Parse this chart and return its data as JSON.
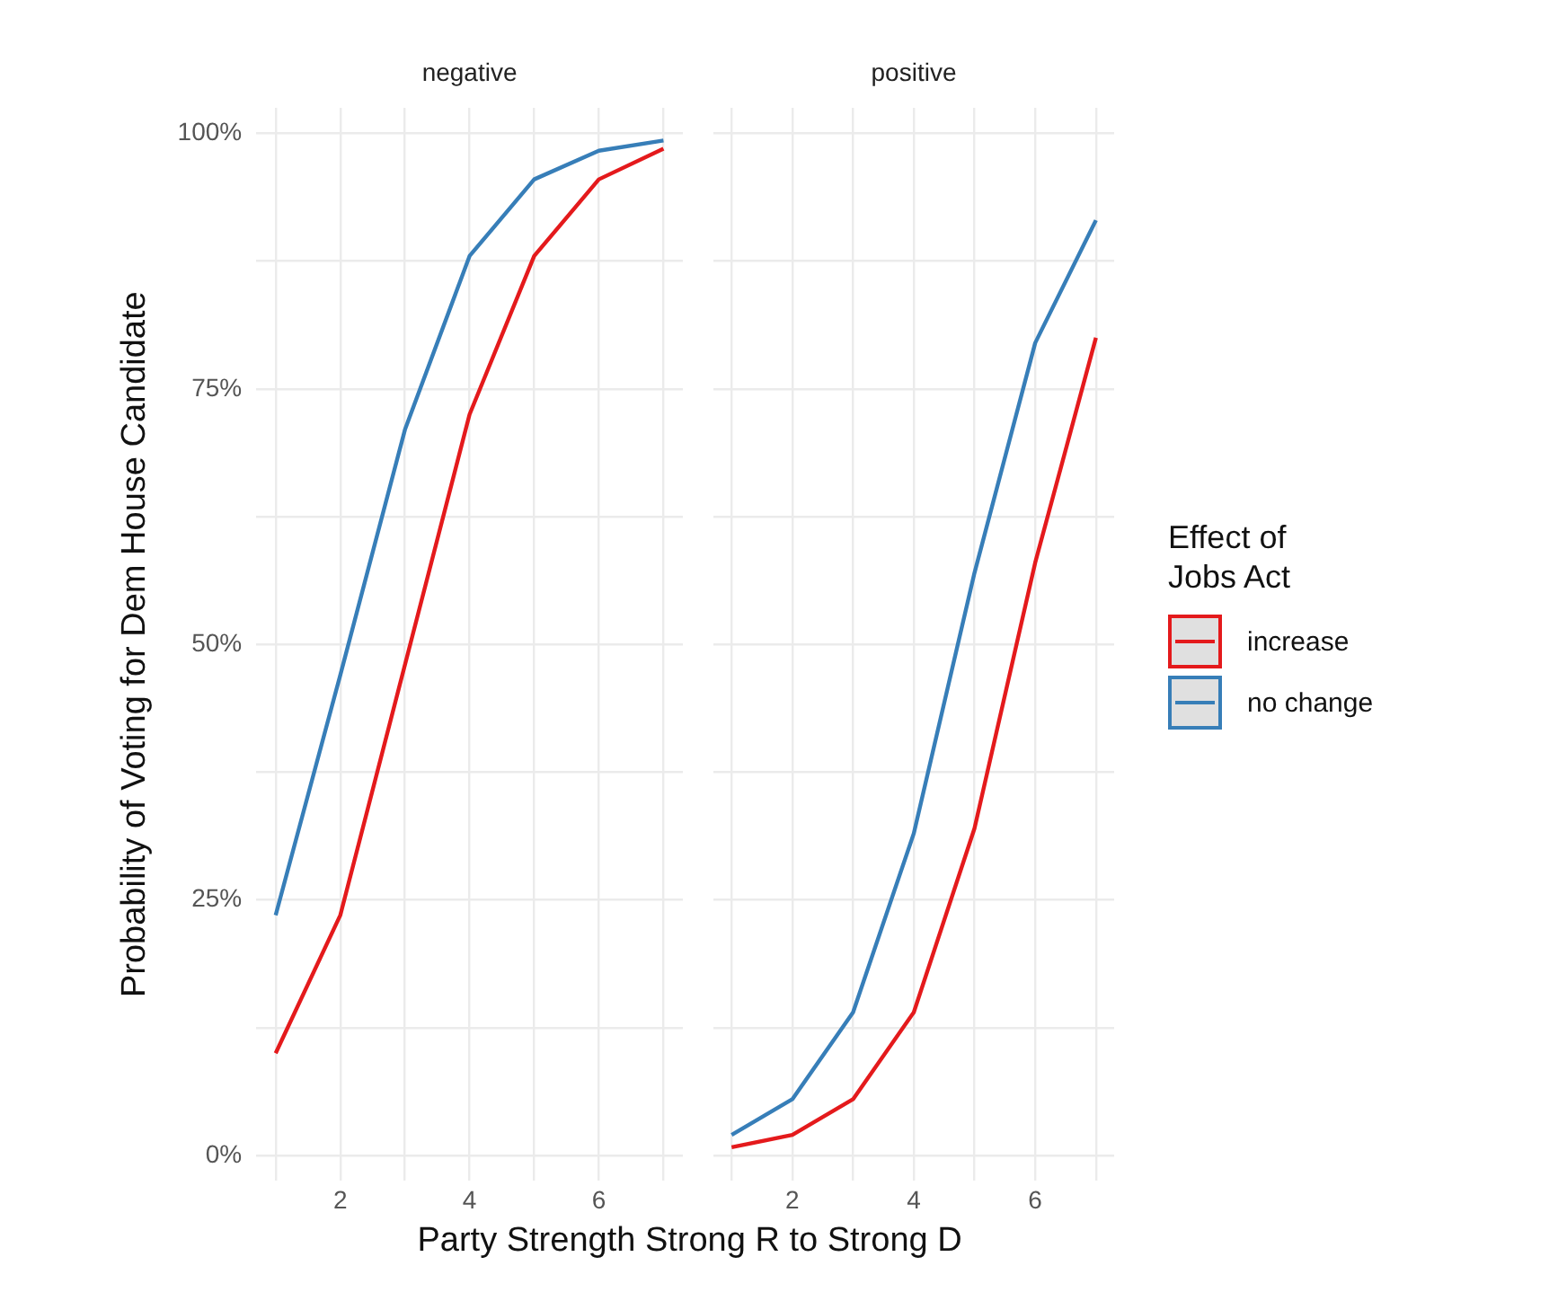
{
  "chart_data": [
    {
      "type": "line",
      "title": "negative",
      "xlabel": "Party Strength Strong R to Strong D",
      "ylabel": "Probability of Voting for Dem House Candidate",
      "x": [
        1,
        2,
        3,
        4,
        5,
        6,
        7
      ],
      "series": [
        {
          "color": "#e41a1c",
          "values": [
            10,
            23.5,
            48,
            72.5,
            88,
            95.5,
            98.5
          ]
        },
        {
          "color": "#377eb8",
          "values": [
            23.5,
            47,
            71,
            88,
            95.5,
            98.3,
            99.3
          ]
        }
      ],
      "xlim": [
        0.7,
        7.3
      ],
      "xticks": [
        {
          "value": 1,
          "label": null
        },
        2,
        {
          "value": 3,
          "label": null
        },
        4,
        {
          "value": 5,
          "label": null
        },
        6,
        {
          "value": 7,
          "label": null
        }
      ],
      "ylim": [
        -2.5,
        102.5
      ],
      "yticks": [
        {
          "value": 0,
          "label": "0%"
        },
        {
          "value": 12.5,
          "label": null
        },
        {
          "value": 25,
          "label": "25%"
        },
        {
          "value": 37.5,
          "label": null
        },
        {
          "value": 50,
          "label": "50%"
        },
        {
          "value": 62.5,
          "label": null
        },
        {
          "value": 75,
          "label": "75%"
        },
        {
          "value": 87.5,
          "label": null
        },
        {
          "value": 100,
          "label": "100%"
        }
      ],
      "grid": true,
      "marker": "none",
      "line_style": "solid"
    },
    {
      "type": "line",
      "title": "positive",
      "legend_title": "Effect of\nJobs Act",
      "x": [
        1,
        2,
        3,
        4,
        5,
        6,
        7
      ],
      "series": [
        {
          "name": "increase",
          "color": "#e41a1c",
          "values": [
            0.8,
            2,
            5.5,
            14,
            32,
            58,
            80
          ]
        },
        {
          "name": "no change",
          "color": "#377eb8",
          "values": [
            2,
            5.5,
            14,
            31.5,
            57,
            79.5,
            91.5
          ]
        }
      ],
      "xlim": [
        0.7,
        7.3
      ],
      "xticks": [
        {
          "value": 1,
          "label": null
        },
        2,
        {
          "value": 3,
          "label": null
        },
        4,
        {
          "value": 5,
          "label": null
        },
        6,
        {
          "value": 7,
          "label": null
        }
      ],
      "ylim": [
        -2.5,
        102.5
      ],
      "yticks": [
        {
          "value": 0,
          "label": null
        },
        {
          "value": 12.5,
          "label": null
        },
        {
          "value": 25,
          "label": null
        },
        {
          "value": 37.5,
          "label": null
        },
        {
          "value": 50,
          "label": null
        },
        {
          "value": 62.5,
          "label": null
        },
        {
          "value": 75,
          "label": null
        },
        {
          "value": 87.5,
          "label": null
        },
        {
          "value": 100,
          "label": null
        }
      ],
      "tick_labels": "x",
      "grid": true,
      "legend": "right",
      "marker": "none",
      "line_style": "solid"
    }
  ]
}
